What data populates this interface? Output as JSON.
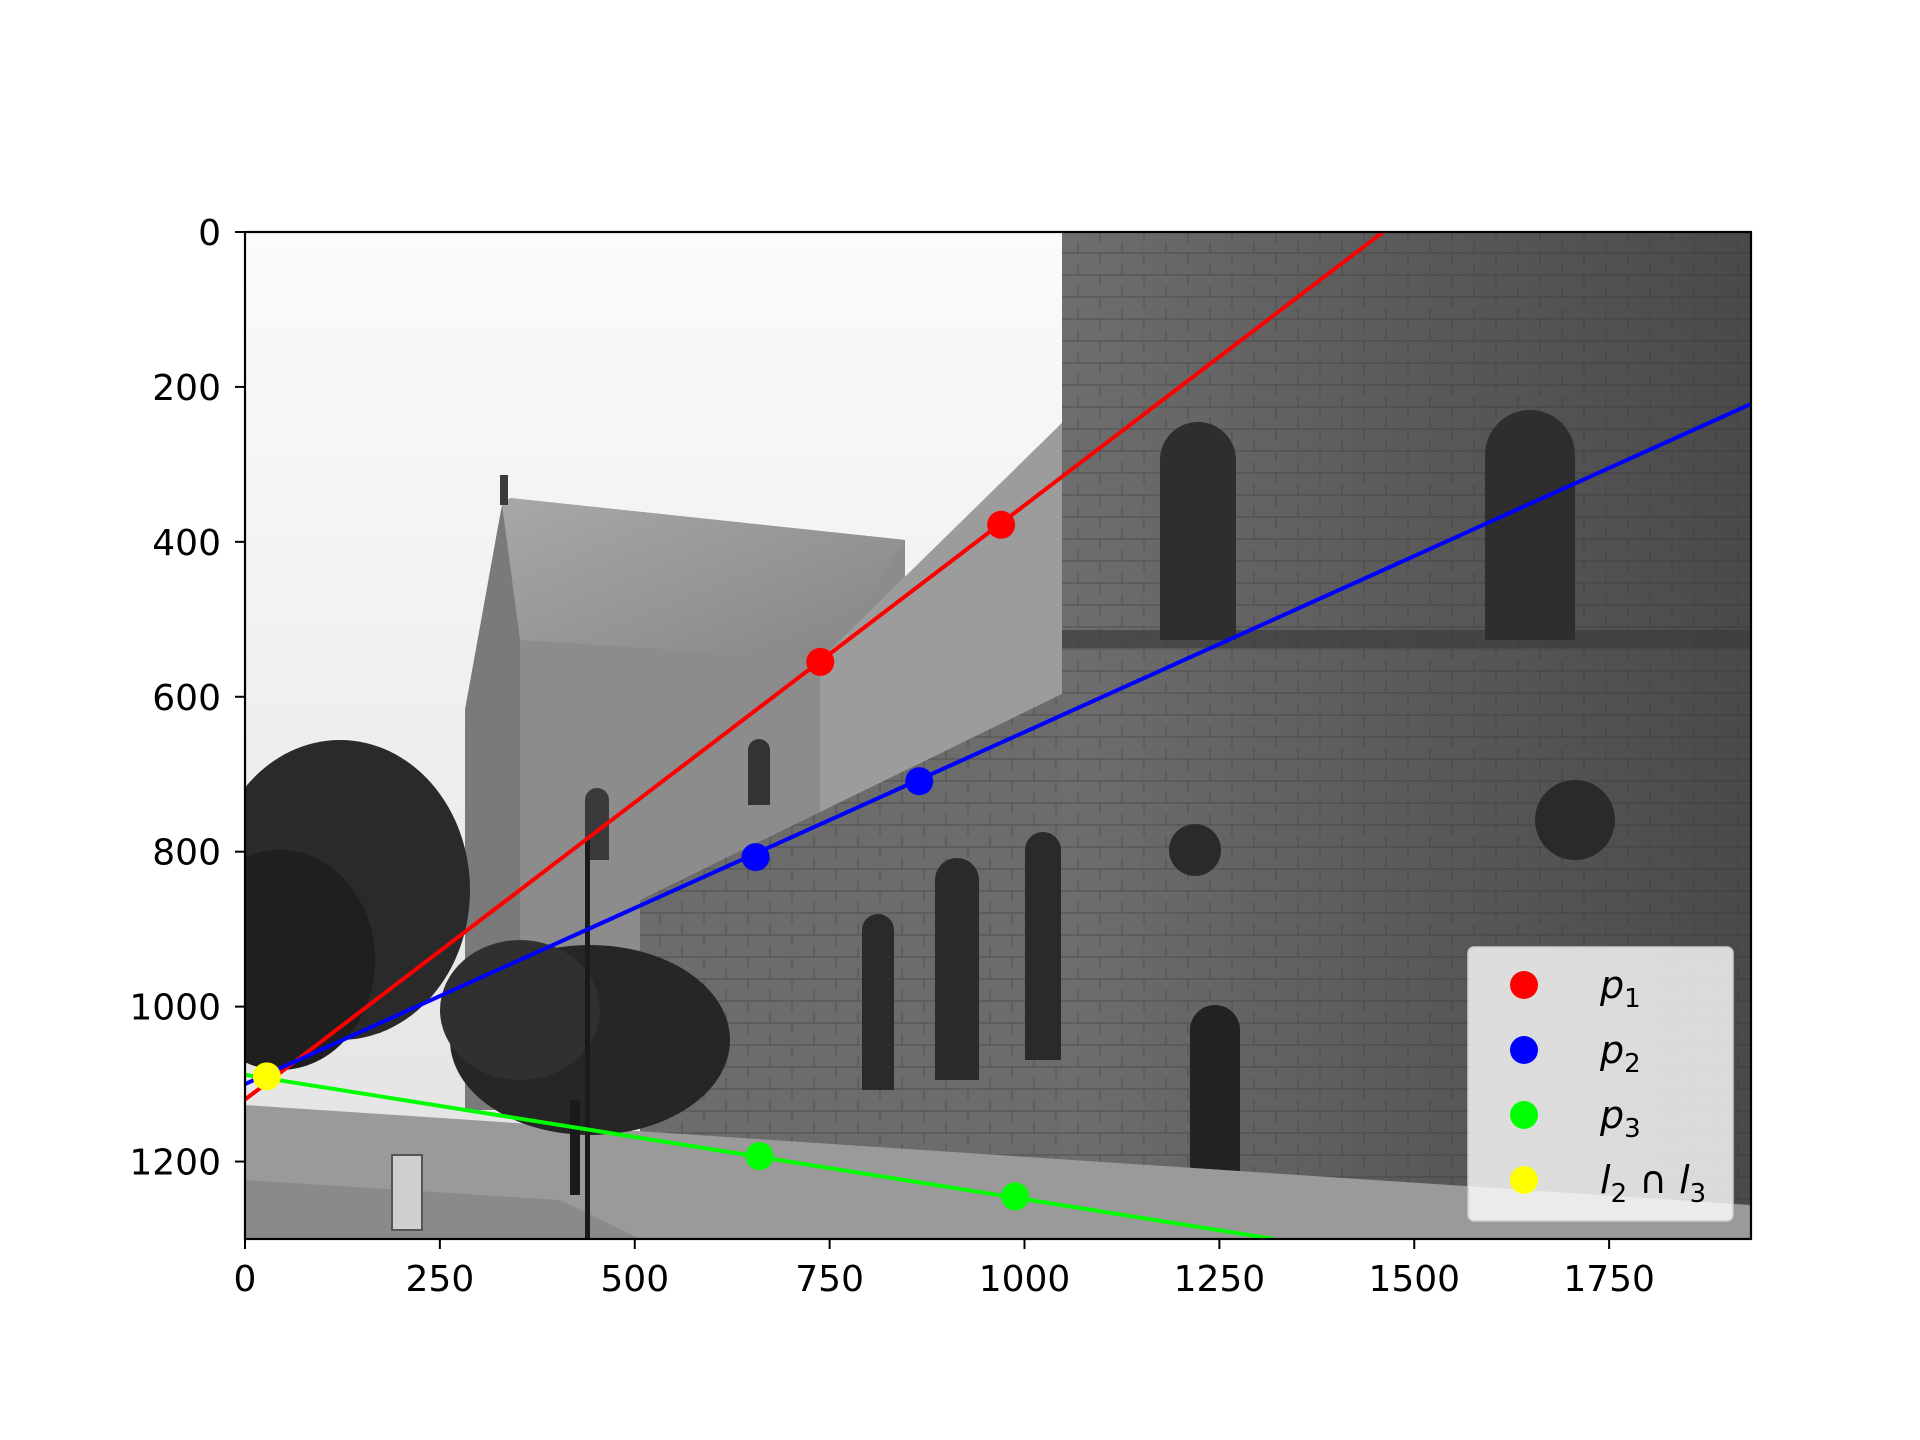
{
  "chart_data": {
    "type": "scatter",
    "title": "",
    "xlabel": "",
    "ylabel": "",
    "xlim": [
      0,
      1932
    ],
    "ylim": [
      1300,
      0
    ],
    "y_inverted": true,
    "grid": false,
    "background": "grayscale photograph of a stone church (cathedral) with a tree on the left",
    "x_ticks": [
      0,
      250,
      500,
      750,
      1000,
      1250,
      1500,
      1750
    ],
    "x_tick_labels": [
      "0",
      "250",
      "500",
      "750",
      "1000",
      "1250",
      "1500",
      "1750"
    ],
    "y_ticks": [
      0,
      200,
      400,
      600,
      800,
      1000,
      1200
    ],
    "y_tick_labels": [
      "0",
      "200",
      "400",
      "600",
      "800",
      "1000",
      "1200"
    ],
    "series": [
      {
        "name": "p_1",
        "color": "#ff0000",
        "points": [
          {
            "x": 738,
            "y": 555
          },
          {
            "x": 970,
            "y": 378
          }
        ],
        "line": [
          {
            "x": 0,
            "y": 1120
          },
          {
            "x": 1460,
            "y": 0
          }
        ]
      },
      {
        "name": "p_2",
        "color": "#0000ff",
        "points": [
          {
            "x": 655,
            "y": 807
          },
          {
            "x": 865,
            "y": 709
          }
        ],
        "line": [
          {
            "x": 0,
            "y": 1100
          },
          {
            "x": 1932,
            "y": 222
          }
        ]
      },
      {
        "name": "p_3",
        "color": "#00ff00",
        "points": [
          {
            "x": 660,
            "y": 1193
          },
          {
            "x": 988,
            "y": 1245
          }
        ],
        "line": [
          {
            "x": 0,
            "y": 1088
          },
          {
            "x": 1320,
            "y": 1300
          }
        ]
      },
      {
        "name": "l_2 ∩ l_3",
        "color": "#ffff00",
        "points": [
          {
            "x": 28,
            "y": 1090
          }
        ],
        "line": null
      }
    ],
    "legend": {
      "placement": "lower-right",
      "entries": [
        {
          "base": "p",
          "sub": "1",
          "color": "#ff0000"
        },
        {
          "base": "p",
          "sub": "2",
          "color": "#0000ff"
        },
        {
          "base": "p",
          "sub": "3",
          "color": "#00ff00"
        },
        {
          "base": "l",
          "sub": "2",
          "mid": " ∩ ",
          "base2": "l",
          "sub2": "3",
          "color": "#ffff00"
        }
      ]
    }
  }
}
